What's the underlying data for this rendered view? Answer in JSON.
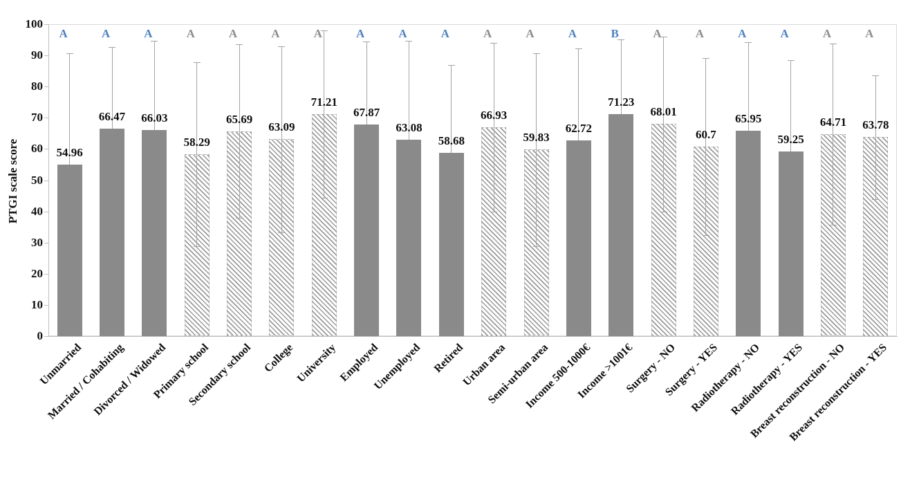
{
  "chart_data": {
    "type": "bar",
    "title": "",
    "ylabel": "PTGI scale score",
    "xlabel": "",
    "ylim": [
      0,
      100
    ],
    "yticks": [
      0,
      10,
      20,
      30,
      40,
      50,
      60,
      70,
      80,
      90,
      100
    ],
    "grid": false,
    "legend": null,
    "error_bars": "symmetric_sd_whiskers_with_caps",
    "bars": [
      {
        "category": "Unmarried",
        "value": 54.96,
        "label": "54.96",
        "error": 35.8,
        "fill": "solid",
        "letter": "A",
        "letter_color": "blue"
      },
      {
        "category": "Married / Cohabiting",
        "value": 66.47,
        "label": "66.47",
        "error": 26.2,
        "fill": "solid",
        "letter": "A",
        "letter_color": "blue"
      },
      {
        "category": "Divorced / Widowed",
        "value": 66.03,
        "label": "66.03",
        "error": 28.6,
        "fill": "solid",
        "letter": "A",
        "letter_color": "blue"
      },
      {
        "category": "Primary school",
        "value": 58.29,
        "label": "58.29",
        "error": 29.5,
        "fill": "hatch",
        "letter": "A",
        "letter_color": "gray"
      },
      {
        "category": "Secondary school",
        "value": 65.69,
        "label": "65.69",
        "error": 27.8,
        "fill": "hatch",
        "letter": "A",
        "letter_color": "gray"
      },
      {
        "category": "College",
        "value": 63.09,
        "label": "63.09",
        "error": 29.9,
        "fill": "hatch",
        "letter": "A",
        "letter_color": "gray"
      },
      {
        "category": "University",
        "value": 71.21,
        "label": "71.21",
        "error": 26.9,
        "fill": "hatch",
        "letter": "A",
        "letter_color": "gray"
      },
      {
        "category": "Employed",
        "value": 67.87,
        "label": "67.87",
        "error": 26.5,
        "fill": "solid",
        "letter": "A",
        "letter_color": "blue"
      },
      {
        "category": "Unemployed",
        "value": 63.08,
        "label": "63.08",
        "error": 31.5,
        "fill": "solid",
        "letter": "A",
        "letter_color": "blue"
      },
      {
        "category": "Retired",
        "value": 58.68,
        "label": "58.68",
        "error": 28.2,
        "fill": "solid",
        "letter": "A",
        "letter_color": "blue"
      },
      {
        "category": "Urban area",
        "value": 66.93,
        "label": "66.93",
        "error": 27.0,
        "fill": "hatch",
        "letter": "A",
        "letter_color": "gray"
      },
      {
        "category": "Semi-urban area",
        "value": 59.83,
        "label": "59.83",
        "error": 30.9,
        "fill": "hatch",
        "letter": "A",
        "letter_color": "gray"
      },
      {
        "category": "Income 500-1000€",
        "value": 62.72,
        "label": "62.72",
        "error": 29.5,
        "fill": "solid",
        "letter": "A",
        "letter_color": "blue"
      },
      {
        "category": "Income >1001€",
        "value": 71.23,
        "label": "71.23",
        "error": 24.0,
        "fill": "solid",
        "letter": "B",
        "letter_color": "blue"
      },
      {
        "category": "Surgery - NO",
        "value": 68.01,
        "label": "68.01",
        "error": 28.1,
        "fill": "hatch",
        "letter": "A",
        "letter_color": "gray"
      },
      {
        "category": "Surgery - YES",
        "value": 60.7,
        "label": "60.7",
        "error": 28.4,
        "fill": "hatch",
        "letter": "A",
        "letter_color": "gray"
      },
      {
        "category": "Radiotherapy - NO",
        "value": 65.95,
        "label": "65.95",
        "error": 28.2,
        "fill": "solid",
        "letter": "A",
        "letter_color": "blue"
      },
      {
        "category": "Radiotherapy - YES",
        "value": 59.25,
        "label": "59.25",
        "error": 29.2,
        "fill": "solid",
        "letter": "A",
        "letter_color": "blue"
      },
      {
        "category": "Breast reconstruction - NO",
        "value": 64.71,
        "label": "64.71",
        "error": 29.0,
        "fill": "hatch",
        "letter": "A",
        "letter_color": "gray"
      },
      {
        "category": "Breast reconstruction - YES",
        "value": 63.78,
        "label": "63.78",
        "error": 19.8,
        "fill": "hatch",
        "letter": "A",
        "letter_color": "gray"
      }
    ]
  },
  "colors": {
    "bar_fill": "#8a8a8a",
    "hatch_stripe": "#9a9a9a",
    "hatch_background": "#ffffff",
    "whisker": "#a3a3a3",
    "letter_blue": "#4f81bd",
    "letter_gray": "#8c8c8c",
    "axis_line": "#bfbfbf",
    "plot_border": "#d9d9d9",
    "text": "#0d0d0d"
  }
}
